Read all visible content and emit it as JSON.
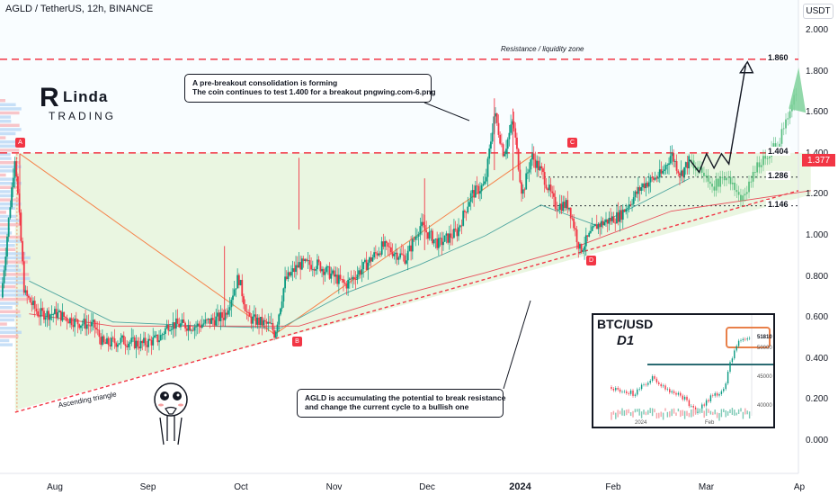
{
  "header": {
    "title": "AGLD / TetherUS, 12h, BINANCE",
    "currency": "USDT"
  },
  "annotations": {
    "callout_top": [
      "A pre-breakout consolidation is forming",
      "The coin continues to test 1.400 for a breakout pngwing.com-6.png"
    ],
    "callout_bottom": [
      "AGLD is accumulating the potential to break resistance",
      "and change the current cycle to a bullish one"
    ],
    "resistance_label": "Resistance / liquidity zone",
    "triangle_label": "Ascending triangle",
    "points": [
      "A",
      "B",
      "C",
      "D"
    ]
  },
  "logo": {
    "initial": "R",
    "name": "Linda",
    "sub": "TRADING"
  },
  "inset": {
    "title": "BTC/USD",
    "timeframe": "D1",
    "price_tag": "51810",
    "y_labels": [
      "50000",
      "45000",
      "40000"
    ],
    "x_labels": [
      "2024",
      "Feb"
    ]
  },
  "chart_data": {
    "type": "candlestick",
    "symbol": "AGLD / TetherUS",
    "interval": "12h",
    "exchange": "BINANCE",
    "y_ticks": [
      "2.000",
      "1.800",
      "1.600",
      "1.400",
      "1.200",
      "1.000",
      "0.800",
      "0.600",
      "0.400",
      "0.200",
      "0.000"
    ],
    "y_range": [
      -0.15,
      2.1
    ],
    "x_ticks": [
      {
        "label": "Aug",
        "bold": false
      },
      {
        "label": "Sep",
        "bold": false
      },
      {
        "label": "Oct",
        "bold": false
      },
      {
        "label": "Nov",
        "bold": false
      },
      {
        "label": "Dec",
        "bold": false
      },
      {
        "label": "2024",
        "bold": true
      },
      {
        "label": "Feb",
        "bold": false
      },
      {
        "label": "Mar",
        "bold": false
      },
      {
        "label": "Ap",
        "bold": false
      }
    ],
    "last_price": "1.377",
    "levels": [
      {
        "value": 1.86,
        "label": "1.860",
        "style": "dashed-red"
      },
      {
        "value": 1.404,
        "label": "1.404",
        "style": "dashed-red"
      },
      {
        "value": 1.286,
        "label": "1.286",
        "style": "dotted"
      },
      {
        "value": 1.146,
        "label": "1.146",
        "style": "dotted"
      }
    ],
    "key_points": [
      {
        "name": "A",
        "month": 0.0,
        "value": 1.4
      },
      {
        "name": "B",
        "month": 2.74,
        "value": 0.52
      },
      {
        "name": "C",
        "month": 5.5,
        "value": 1.39
      },
      {
        "name": "D",
        "month": 6.02,
        "value": 0.93
      }
    ],
    "price_path": [
      [
        -0.2,
        0.7
      ],
      [
        -0.05,
        1.4
      ],
      [
        0.05,
        0.72
      ],
      [
        0.2,
        0.62
      ],
      [
        0.4,
        0.62
      ],
      [
        0.6,
        0.58
      ],
      [
        0.8,
        0.56
      ],
      [
        0.9,
        0.47
      ],
      [
        1.1,
        0.49
      ],
      [
        1.3,
        0.47
      ],
      [
        1.5,
        0.5
      ],
      [
        1.6,
        0.57
      ],
      [
        1.9,
        0.56
      ],
      [
        2.2,
        0.61
      ],
      [
        2.35,
        0.8
      ],
      [
        2.45,
        0.6
      ],
      [
        2.7,
        0.56
      ],
      [
        2.74,
        0.52
      ],
      [
        2.85,
        0.78
      ],
      [
        3.0,
        0.86
      ],
      [
        3.2,
        0.86
      ],
      [
        3.5,
        0.76
      ],
      [
        3.7,
        0.85
      ],
      [
        3.9,
        0.95
      ],
      [
        4.15,
        0.89
      ],
      [
        4.3,
        1.05
      ],
      [
        4.5,
        0.96
      ],
      [
        4.7,
        1.02
      ],
      [
        4.85,
        1.2
      ],
      [
        5.0,
        1.25
      ],
      [
        5.1,
        1.6
      ],
      [
        5.2,
        1.4
      ],
      [
        5.3,
        1.56
      ],
      [
        5.4,
        1.2
      ],
      [
        5.5,
        1.39
      ],
      [
        5.62,
        1.3
      ],
      [
        5.75,
        1.15
      ],
      [
        5.9,
        1.15
      ],
      [
        6.02,
        0.93
      ],
      [
        6.2,
        1.05
      ],
      [
        6.45,
        1.1
      ],
      [
        6.7,
        1.25
      ],
      [
        6.9,
        1.3
      ],
      [
        7.0,
        1.4
      ],
      [
        7.1,
        1.3
      ],
      [
        7.2,
        1.37
      ]
    ],
    "projection_black": [
      [
        7.2,
        1.37
      ],
      [
        7.3,
        1.31
      ],
      [
        7.38,
        1.4
      ],
      [
        7.46,
        1.33
      ],
      [
        7.54,
        1.4
      ],
      [
        7.62,
        1.35
      ],
      [
        7.8,
        1.83
      ]
    ],
    "projection_green": [
      [
        7.2,
        1.37
      ],
      [
        7.45,
        1.24
      ],
      [
        7.6,
        1.3
      ],
      [
        7.75,
        1.18
      ],
      [
        7.95,
        1.36
      ],
      [
        8.15,
        1.45
      ],
      [
        8.35,
        1.7
      ]
    ]
  }
}
